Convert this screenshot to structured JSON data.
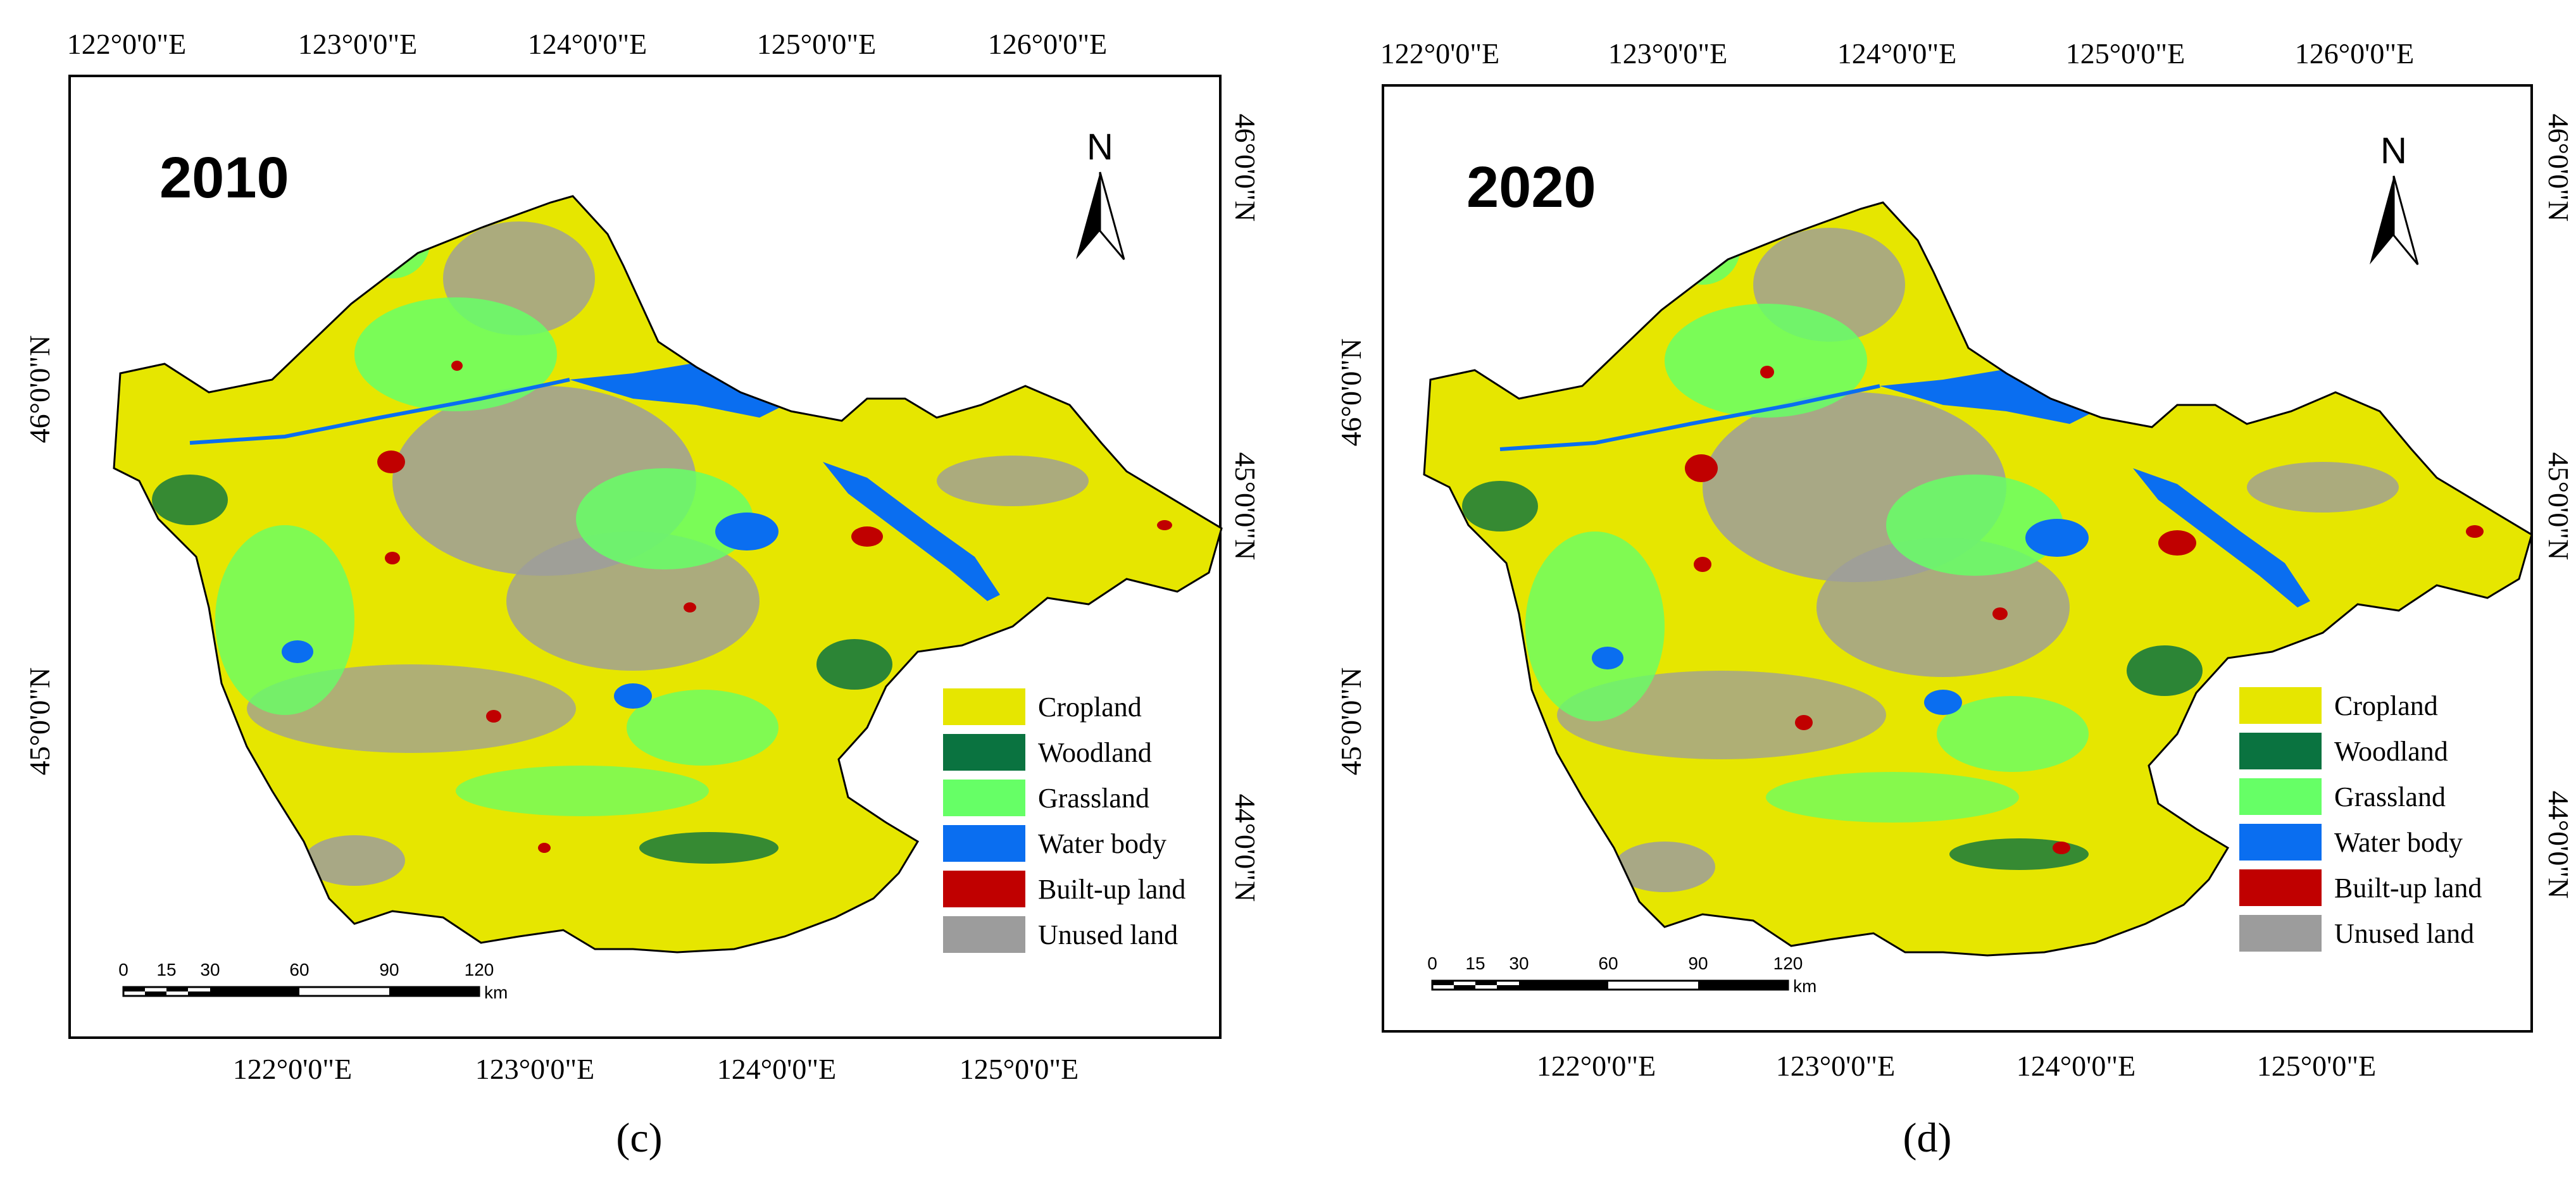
{
  "panels": [
    {
      "year": "2010",
      "caption": "(c)",
      "top_lon_labels": [
        "122°0'0\"E",
        "123°0'0\"E",
        "124°0'0\"E",
        "125°0'0\"E",
        "126°0'0\"E"
      ],
      "bottom_lon_labels": [
        "122°0'0\"E",
        "123°0'0\"E",
        "124°0'0\"E",
        "125°0'0\"E"
      ],
      "left_lat_labels": [
        "46°0'0\"N",
        "45°0'0\"N"
      ],
      "right_lat_labels": [
        "46°0'0\"N",
        "45°0'0\"N",
        "44°0'0\"N"
      ],
      "north_label": "N"
    },
    {
      "year": "2020",
      "caption": "(d)",
      "top_lon_labels": [
        "122°0'0\"E",
        "123°0'0\"E",
        "124°0'0\"E",
        "125°0'0\"E",
        "126°0'0\"E"
      ],
      "bottom_lon_labels": [
        "122°0'0\"E",
        "123°0'0\"E",
        "124°0'0\"E",
        "125°0'0\"E"
      ],
      "left_lat_labels": [
        "46°0'0\"N",
        "45°0'0\"N"
      ],
      "right_lat_labels": [
        "46°0'0\"N",
        "45°0'0\"N",
        "44°0'0\"N"
      ],
      "north_label": "N"
    }
  ],
  "legend": [
    {
      "label": "Cropland",
      "color": "#e6e600"
    },
    {
      "label": "Woodland",
      "color": "#0a7340"
    },
    {
      "label": "Grassland",
      "color": "#66ff66"
    },
    {
      "label": "Water body",
      "color": "#0a6ef0"
    },
    {
      "label": "Built-up land",
      "color": "#c00000"
    },
    {
      "label": "Unused land",
      "color": "#9c9c9c"
    }
  ],
  "scale_bar": {
    "ticks": [
      "0",
      "15",
      "30",
      "60",
      "90",
      "120"
    ],
    "unit": "km"
  }
}
